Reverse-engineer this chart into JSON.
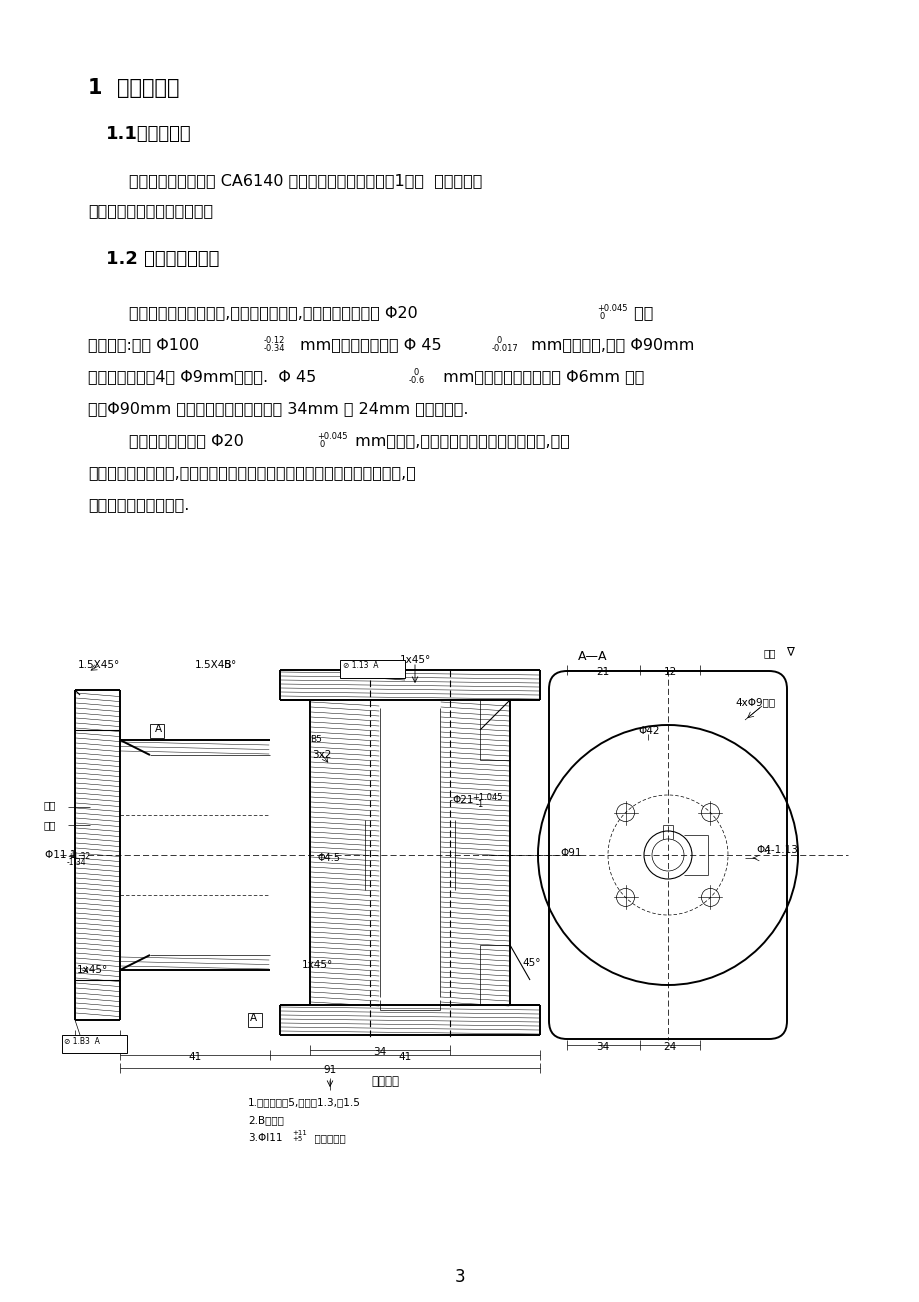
{
  "title1": "1  零件的分析",
  "title2": "1.1零件的作用",
  "title3": "1.2 零件的工艺分析",
  "para1a": "        题目所给定的零件是 CA6140 车床上的法兰盘（见附图1），  法兰盘起联",
  "para1b": "接作用是车床上的重要零件。",
  "para2_L1a": "        法兰盘是一回转体零件,有一组加工表面,这一组加工表面以 Φ20",
  "para2_L1b": " 为中",
  "para2_L2a": "心，包括:两个 Φ100",
  "para2_L2b": "mm的端面，尺寸为 Φ 45",
  "para2_L2c": " mm的圆柱面,两个 Φ90mm",
  "para2_L3a": "的端面及上面的4个 Φ9mm的透孔.  Φ 45",
  "para2_L3b": " mm的外圆柱面及上面的 Φ6mm 的销",
  "para2_L4": "孔，Φ90mm 端面上距离中心线分别为 34mm 和 24mm 的两个平面.",
  "para3_L1a": "        这组加工表面是以 Φ20",
  "para3_L1b": " mm为中心,其余加工面都与它有位置关系,可以",
  "para3_L2": "先加工它的一个端面,再借助专用夹具以这个端面为定位基准加工另一端面,然",
  "para3_L3": "后再加工其它加工表面.",
  "page_number": "3",
  "bg_color": "#ffffff",
  "text_color": "#000000",
  "drawing_caption": "技术要求",
  "drawing_req1": "1.刻字字墓高5,刻线共1.3,深1.5",
  "drawing_req2": "2.B面抛光",
  "drawing_req3a": "3.Φl11",
  "drawing_req3b": "  外圆光洁度"
}
